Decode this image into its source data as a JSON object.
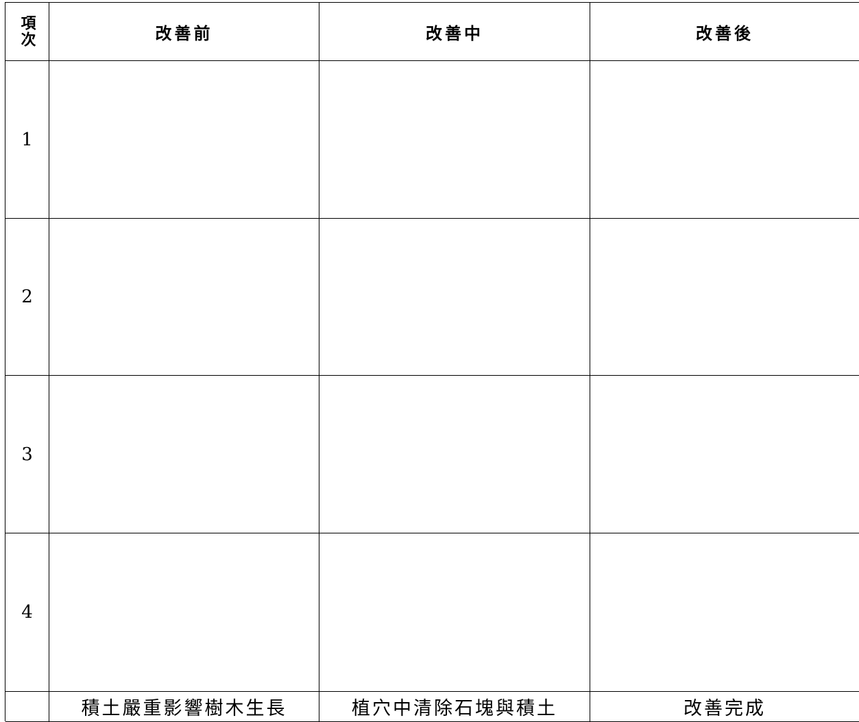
{
  "table": {
    "header": [
      "項次",
      "改善前",
      "改善中",
      "改善後"
    ],
    "rows": [
      "1",
      "2",
      "3",
      "4"
    ],
    "captions": [
      "積土嚴重影響樹木生長",
      "植穴中清除石塊與積土",
      "改善完成"
    ]
  }
}
